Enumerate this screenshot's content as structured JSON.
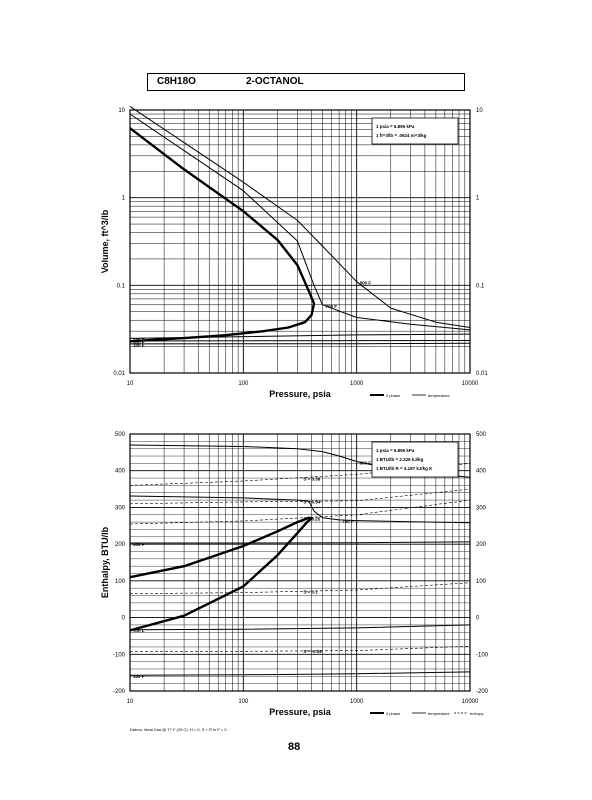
{
  "header": {
    "formula": "C8H18O",
    "name": "2-OCTANOL"
  },
  "page_number": "88",
  "chart_data": [
    {
      "type": "line",
      "xlabel": "Pressure, psia",
      "ylabel": "Volume, ft^3/lb",
      "x_scale": "log",
      "y_scale": "log",
      "xlim": [
        10,
        10000
      ],
      "ylim": [
        0.01,
        10
      ],
      "x_ticks": [
        "10",
        "100",
        "1000",
        "10000"
      ],
      "y_ticks": [
        "0.01",
        "0.1",
        "1",
        "10"
      ],
      "y_ticks_right": [
        "0.01",
        "0.1",
        "1",
        "10"
      ],
      "conversion_box": [
        "1 psia = 6.895 kPa",
        "1 ft^3/lb = .0624 m^3/kg"
      ],
      "legend": [
        "2 phase",
        "temperature"
      ],
      "series": [
        {
          "kind": "two_phase_dome",
          "x": [
            10,
            30,
            100,
            200,
            300,
            380,
            420,
            400,
            350,
            250,
            150,
            70,
            30,
            10
          ],
          "y": [
            6.2,
            2.1,
            0.7,
            0.33,
            0.17,
            0.085,
            0.062,
            0.046,
            0.038,
            0.033,
            0.03,
            0.027,
            0.025,
            0.023
          ]
        },
        {
          "name": "800 F",
          "x": [
            10,
            100,
            300,
            500,
            1000,
            2000,
            5000,
            10000
          ],
          "y": [
            11,
            1.5,
            0.55,
            0.28,
            0.11,
            0.055,
            0.038,
            0.033
          ]
        },
        {
          "name": "700 F",
          "x": [
            10,
            100,
            300,
            420,
            500,
            1000,
            3000,
            10000
          ],
          "y": [
            9,
            1.2,
            0.32,
            0.1,
            0.06,
            0.043,
            0.036,
            0.031
          ]
        },
        {
          "name": "500 F",
          "x": [
            10,
            1000,
            10000
          ],
          "y": [
            0.0248,
            0.0272,
            0.0278
          ]
        },
        {
          "name": "300 F",
          "x": [
            10,
            1000,
            10000
          ],
          "y": [
            0.0232,
            0.0234,
            0.0235
          ]
        },
        {
          "name": "100 F",
          "x": [
            10,
            1000,
            10000
          ],
          "y": [
            0.0215,
            0.0216,
            0.0218
          ]
        }
      ]
    },
    {
      "type": "line",
      "xlabel": "Pressure, psia",
      "ylabel": "Enthalpy, BTU/lb",
      "x_scale": "log",
      "y_scale": "linear",
      "xlim": [
        10,
        10000
      ],
      "ylim": [
        -200,
        500
      ],
      "x_ticks": [
        "10",
        "100",
        "1000",
        "10000"
      ],
      "y_ticks": [
        "-200",
        "-100",
        "0",
        "100",
        "200",
        "300",
        "400",
        "500"
      ],
      "y_ticks_right": [
        "-200",
        "-100",
        "0",
        "100",
        "200",
        "300",
        "400",
        "500"
      ],
      "conversion_box": [
        "1 psia = 6.895 kPa",
        "1 BTU/lb = 2.326 kJ/kg",
        "1 BTU/lb R = 4.187 kJ/kg K"
      ],
      "legend": [
        "2 phase",
        "temperature",
        "entropy"
      ],
      "footnote": "Datum: Ideal Gas @ 77 F (25 C), H = 0, S + R ln P = 0",
      "series": [
        {
          "kind": "two_phase_dome",
          "x": [
            10,
            30,
            100,
            200,
            300,
            380,
            400,
            370,
            300,
            200,
            100,
            30,
            10
          ],
          "y": [
            110,
            140,
            195,
            235,
            260,
            272,
            270,
            262,
            230,
            170,
            85,
            5,
            -35
          ]
        },
        {
          "name": "900 F",
          "x": [
            10,
            100,
            300,
            500,
            700,
            1000,
            2000,
            5000,
            10000
          ],
          "y": [
            470,
            466,
            460,
            452,
            440,
            425,
            405,
            390,
            382
          ]
        },
        {
          "name": "700 F",
          "x": [
            10,
            100,
            300,
            380,
            420,
            500,
            700,
            1000,
            3000,
            10000
          ],
          "y": [
            331,
            326,
            320,
            317,
            290,
            272,
            266,
            264,
            261,
            258
          ]
        },
        {
          "name": "500 F",
          "x": [
            10,
            100,
            1000,
            10000
          ],
          "y": [
            203,
            203,
            204,
            206
          ]
        },
        {
          "name": "300 F",
          "x": [
            10,
            100,
            1000,
            10000
          ],
          "y": [
            -33,
            -32,
            -28,
            -20
          ]
        },
        {
          "name": "100 F",
          "x": [
            10,
            100,
            1000,
            10000
          ],
          "y": [
            -157,
            -156,
            -153,
            -148
          ]
        },
        {
          "kind": "entropy",
          "name": "S = 0.38",
          "x": [
            10,
            100,
            1000,
            10000
          ],
          "y": [
            360,
            372,
            390,
            420
          ]
        },
        {
          "kind": "entropy",
          "name": "S = 0.34",
          "x": [
            10,
            100,
            1000,
            10000
          ],
          "y": [
            310,
            315,
            318,
            350
          ]
        },
        {
          "kind": "entropy",
          "name": "S = 0.25",
          "x": [
            10,
            100,
            1000,
            10000
          ],
          "y": [
            255,
            263,
            280,
            320
          ]
        },
        {
          "kind": "entropy",
          "name": "S = 0.1",
          "x": [
            10,
            100,
            1000,
            10000
          ],
          "y": [
            65,
            68,
            75,
            95
          ]
        },
        {
          "kind": "entropy",
          "name": "S = -0.08",
          "x": [
            10,
            100,
            1000,
            10000
          ],
          "y": [
            -92,
            -92,
            -90,
            -78
          ]
        }
      ]
    }
  ]
}
